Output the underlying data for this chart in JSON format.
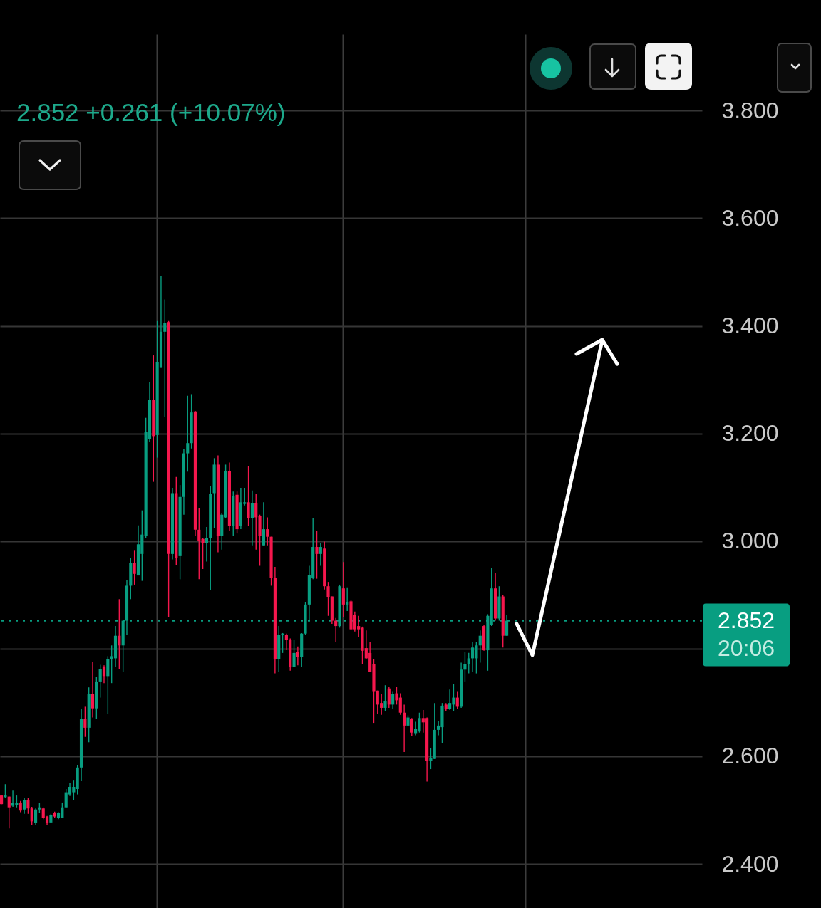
{
  "chart_data": {
    "type": "candlestick",
    "title": "2.852 +0.261 (+10.07%)",
    "categories": [
      null,
      null,
      null,
      null,
      null,
      null,
      null,
      null,
      null,
      null,
      null,
      null,
      null,
      null,
      null,
      null,
      null,
      null,
      null,
      null,
      null,
      null,
      null,
      null,
      null,
      null,
      null,
      null,
      null,
      null,
      null,
      null,
      null,
      null,
      null,
      null,
      null,
      null,
      null,
      null,
      null,
      null,
      null,
      null,
      null,
      null,
      null,
      null,
      null,
      null,
      null,
      null,
      null,
      null,
      null,
      null,
      null,
      null,
      null,
      null,
      null,
      null,
      null,
      null,
      null,
      null,
      null,
      null,
      null,
      null,
      null,
      null,
      null,
      null,
      null,
      null,
      null,
      null,
      null,
      null,
      null,
      null,
      null,
      null,
      null,
      null,
      null,
      null,
      null,
      null,
      null,
      null,
      null,
      null,
      null,
      null,
      null,
      null,
      null,
      null,
      null,
      null,
      null,
      null,
      null,
      null,
      null,
      null,
      null,
      null,
      null,
      null,
      null,
      null,
      null,
      null,
      null,
      null,
      null,
      null,
      null,
      null,
      null,
      null,
      null,
      null,
      null,
      null,
      null,
      null,
      null,
      null,
      null,
      null,
      null,
      null,
      null,
      null,
      null,
      null,
      null,
      null,
      null,
      null,
      null,
      null,
      null,
      null,
      null,
      null,
      null,
      null,
      null,
      null,
      null,
      null,
      null,
      null,
      null,
      null,
      null,
      null,
      null,
      null,
      null,
      null,
      null,
      null,
      null,
      null,
      null,
      null,
      null,
      null,
      null,
      null,
      null,
      null,
      null,
      null,
      null,
      null,
      null,
      null,
      null
    ],
    "ohlc": [
      [
        2.527,
        2.527,
        2.511,
        2.511
      ],
      [
        2.524,
        2.548,
        2.523,
        2.528
      ],
      [
        2.525,
        2.525,
        2.466,
        2.505
      ],
      [
        2.508,
        2.536,
        2.506,
        2.514
      ],
      [
        2.509,
        2.527,
        2.505,
        2.513
      ],
      [
        2.514,
        2.517,
        2.496,
        2.499
      ],
      [
        2.501,
        2.523,
        2.493,
        2.519
      ],
      [
        2.519,
        2.523,
        2.493,
        2.503
      ],
      [
        2.503,
        2.506,
        2.473,
        2.479
      ],
      [
        2.476,
        2.503,
        2.473,
        2.501
      ],
      [
        2.501,
        2.513,
        2.495,
        2.505
      ],
      [
        2.503,
        2.505,
        2.483,
        2.485
      ],
      [
        2.488,
        2.489,
        2.473,
        2.476
      ],
      [
        2.477,
        2.493,
        2.476,
        2.491
      ],
      [
        2.495,
        2.497,
        2.486,
        2.488
      ],
      [
        2.486,
        2.496,
        2.483,
        2.495
      ],
      [
        2.486,
        2.514,
        2.486,
        2.505
      ],
      [
        2.505,
        2.539,
        2.505,
        2.533
      ],
      [
        2.529,
        2.551,
        2.526,
        2.543
      ],
      [
        2.533,
        2.556,
        2.519,
        2.543
      ],
      [
        2.539,
        2.584,
        2.529,
        2.579
      ],
      [
        2.579,
        2.688,
        2.555,
        2.669
      ],
      [
        2.669,
        2.692,
        2.636,
        2.653
      ],
      [
        2.653,
        2.728,
        2.626,
        2.716
      ],
      [
        2.716,
        2.776,
        2.672,
        2.689
      ],
      [
        2.689,
        2.747,
        2.669,
        2.739
      ],
      [
        2.739,
        2.77,
        2.709,
        2.762
      ],
      [
        2.766,
        2.769,
        2.736,
        2.749
      ],
      [
        2.749,
        2.786,
        2.679,
        2.78
      ],
      [
        2.78,
        2.806,
        2.736,
        2.786
      ],
      [
        2.782,
        2.842,
        2.766,
        2.824
      ],
      [
        2.824,
        2.892,
        2.762,
        2.806
      ],
      [
        2.806,
        2.852,
        2.756,
        2.852
      ],
      [
        2.852,
        2.928,
        2.826,
        2.917
      ],
      [
        2.917,
        2.969,
        2.892,
        2.959
      ],
      [
        2.959,
        2.982,
        2.919,
        2.939
      ],
      [
        2.936,
        3.029,
        2.936,
        2.994
      ],
      [
        2.976,
        3.057,
        2.926,
        3.012
      ],
      [
        3.009,
        3.229,
        3.006,
        3.202
      ],
      [
        3.189,
        3.295,
        3.185,
        3.262
      ],
      [
        3.262,
        3.345,
        3.11,
        3.195
      ],
      [
        3.197,
        3.409,
        3.155,
        3.332
      ],
      [
        3.322,
        3.492,
        3.322,
        3.389
      ],
      [
        3.389,
        3.449,
        3.23,
        3.405
      ],
      [
        3.407,
        3.409,
        2.859,
        2.976
      ],
      [
        2.976,
        3.099,
        2.966,
        3.089
      ],
      [
        3.089,
        3.119,
        2.956,
        2.969
      ],
      [
        2.972,
        3.104,
        2.929,
        3.082
      ],
      [
        3.082,
        3.171,
        3.049,
        3.163
      ],
      [
        3.163,
        3.27,
        3.129,
        3.182
      ],
      [
        3.182,
        3.273,
        3.172,
        3.239
      ],
      [
        3.241,
        3.242,
        3.009,
        3.021
      ],
      [
        3.021,
        3.062,
        2.929,
        3.001
      ],
      [
        3.004,
        3.006,
        2.948,
        2.997
      ],
      [
        2.997,
        3.026,
        2.962,
        3.006
      ],
      [
        3.006,
        3.102,
        2.909,
        3.088
      ],
      [
        3.089,
        3.154,
        3.024,
        3.142
      ],
      [
        3.142,
        3.159,
        2.979,
        3.009
      ],
      [
        3.009,
        3.052,
        2.984,
        3.049
      ],
      [
        3.044,
        3.142,
        3.042,
        3.13
      ],
      [
        3.13,
        3.146,
        3.019,
        3.028
      ],
      [
        3.028,
        3.092,
        3.009,
        3.084
      ],
      [
        3.086,
        3.092,
        3.014,
        3.022
      ],
      [
        3.028,
        3.099,
        3.022,
        3.072
      ],
      [
        3.069,
        3.099,
        3.066,
        3.072
      ],
      [
        3.072,
        3.139,
        3.028,
        3.042
      ],
      [
        3.042,
        3.094,
        2.992,
        3.07
      ],
      [
        3.07,
        3.088,
        2.984,
        3.044
      ],
      [
        3.046,
        3.049,
        2.954,
        3.009
      ],
      [
        2.992,
        3.072,
        2.992,
        3.022
      ],
      [
        3.022,
        3.044,
        2.992,
        3.008
      ],
      [
        3.008,
        3.008,
        2.917,
        2.932
      ],
      [
        2.932,
        2.952,
        2.754,
        2.781
      ],
      [
        2.781,
        2.842,
        2.756,
        2.826
      ],
      [
        2.826,
        2.829,
        2.792,
        2.828
      ],
      [
        2.826,
        2.828,
        2.797,
        2.816
      ],
      [
        2.817,
        2.819,
        2.759,
        2.766
      ],
      [
        2.766,
        2.817,
        2.766,
        2.792
      ],
      [
        2.794,
        2.804,
        2.769,
        2.784
      ],
      [
        2.784,
        2.829,
        2.766,
        2.828
      ],
      [
        2.828,
        2.886,
        2.826,
        2.882
      ],
      [
        2.882,
        2.954,
        2.854,
        2.937
      ],
      [
        2.932,
        3.042,
        2.929,
        2.989
      ],
      [
        2.989,
        3.019,
        2.93,
        2.976
      ],
      [
        2.976,
        2.997,
        2.954,
        2.989
      ],
      [
        2.986,
        2.999,
        2.91,
        2.916
      ],
      [
        2.916,
        2.924,
        2.861,
        2.896
      ],
      [
        2.897,
        2.897,
        2.846,
        2.852
      ],
      [
        2.852,
        2.857,
        2.812,
        2.842
      ],
      [
        2.842,
        2.919,
        2.839,
        2.916
      ],
      [
        2.912,
        2.961,
        2.859,
        2.882
      ],
      [
        2.882,
        2.914,
        2.87,
        2.886
      ],
      [
        2.888,
        2.89,
        2.834,
        2.836
      ],
      [
        2.862,
        2.869,
        2.832,
        2.836
      ],
      [
        2.842,
        2.861,
        2.821,
        2.836
      ],
      [
        2.839,
        2.841,
        2.772,
        2.796
      ],
      [
        2.801,
        2.834,
        2.781,
        2.782
      ],
      [
        2.792,
        2.812,
        2.756,
        2.757
      ],
      [
        2.772,
        2.781,
        2.662,
        2.721
      ],
      [
        2.722,
        2.722,
        2.679,
        2.696
      ],
      [
        2.699,
        2.716,
        2.677,
        2.69
      ],
      [
        2.69,
        2.732,
        2.684,
        2.702
      ],
      [
        2.726,
        2.729,
        2.69,
        2.696
      ],
      [
        2.696,
        2.721,
        2.688,
        2.716
      ],
      [
        2.717,
        2.729,
        2.696,
        2.704
      ],
      [
        2.709,
        2.717,
        2.677,
        2.681
      ],
      [
        2.681,
        2.696,
        2.608,
        2.657
      ],
      [
        2.657,
        2.676,
        2.657,
        2.672
      ],
      [
        2.669,
        2.671,
        2.637,
        2.644
      ],
      [
        2.643,
        2.664,
        2.639,
        2.651
      ],
      [
        2.646,
        2.681,
        2.644,
        2.671
      ],
      [
        2.671,
        2.686,
        2.644,
        2.663
      ],
      [
        2.671,
        2.672,
        2.553,
        2.591
      ],
      [
        2.591,
        2.615,
        2.576,
        2.597
      ],
      [
        2.595,
        2.699,
        2.595,
        2.649
      ],
      [
        2.649,
        2.666,
        2.639,
        2.657
      ],
      [
        2.654,
        2.699,
        2.624,
        2.694
      ],
      [
        2.696,
        2.699,
        2.684,
        2.688
      ],
      [
        2.688,
        2.724,
        2.686,
        2.699
      ],
      [
        2.696,
        2.734,
        2.684,
        2.709
      ],
      [
        2.709,
        2.721,
        2.688,
        2.692
      ],
      [
        2.692,
        2.774,
        2.69,
        2.761
      ],
      [
        2.761,
        2.794,
        2.739,
        2.772
      ],
      [
        2.772,
        2.792,
        2.754,
        2.782
      ],
      [
        2.782,
        2.812,
        2.756,
        2.802
      ],
      [
        2.782,
        2.812,
        2.754,
        2.806
      ],
      [
        2.806,
        2.834,
        2.774,
        2.824
      ],
      [
        2.842,
        2.844,
        2.796,
        2.797
      ],
      [
        2.797,
        2.864,
        2.759,
        2.861
      ],
      [
        2.844,
        2.95,
        2.842,
        2.912
      ],
      [
        2.912,
        2.941,
        2.852,
        2.856
      ],
      [
        2.856,
        2.916,
        2.852,
        2.897
      ],
      [
        2.897,
        2.899,
        2.802,
        2.824
      ],
      [
        2.824,
        2.862,
        2.824,
        2.852
      ],
      null,
      null,
      null,
      null,
      null,
      null,
      null,
      null,
      null,
      null,
      null,
      null,
      null,
      null,
      null,
      null,
      null,
      null,
      null,
      null,
      null,
      null,
      null,
      null,
      null,
      null,
      null,
      null,
      null,
      null,
      null,
      null,
      null,
      null,
      null,
      null,
      null,
      null,
      null,
      null,
      null,
      null,
      null,
      null,
      null,
      null,
      null,
      null,
      null,
      null,
      null
    ],
    "colors": [
      "#f5174d",
      "#089e81",
      "#f5174d",
      "#089e81",
      "#089e81",
      "#f5174d",
      "#089e81",
      "#f5174d",
      "#f5174d",
      "#089e81",
      "#089e81",
      "#f5174d",
      "#f5174d",
      "#089e81",
      "#f5174d",
      "#089e81",
      "#089e81",
      "#089e81",
      "#089e81",
      "#089e81",
      "#089e81",
      "#089e81",
      "#f5174d",
      "#089e81",
      "#f5174d",
      "#089e81",
      "#089e81",
      "#f5174d",
      "#089e81",
      "#089e81",
      "#089e81",
      "#f5174d",
      "#089e81",
      "#089e81",
      "#089e81",
      "#f5174d",
      "#089e81",
      "#089e81",
      "#089e81",
      "#089e81",
      "#f5174d",
      "#089e81",
      "#089e81",
      "#089e81",
      "#f5174d",
      "#089e81",
      "#f5174d",
      "#089e81",
      "#089e81",
      "#089e81",
      "#089e81",
      "#f5174d",
      "#f5174d",
      "#f5174d",
      "#089e81",
      "#089e81",
      "#089e81",
      "#f5174d",
      "#089e81",
      "#089e81",
      "#f5174d",
      "#089e81",
      "#f5174d",
      "#089e81",
      "#089e81",
      "#f5174d",
      "#089e81",
      "#f5174d",
      "#f5174d",
      "#089e81",
      "#f5174d",
      "#f5174d",
      "#f5174d",
      "#089e81",
      "#089e81",
      "#f5174d",
      "#f5174d",
      "#089e81",
      "#f5174d",
      "#089e81",
      "#089e81",
      "#089e81",
      "#089e81",
      "#f5174d",
      "#089e81",
      "#f5174d",
      "#f5174d",
      "#f5174d",
      "#f5174d",
      "#089e81",
      "#f5174d",
      "#089e81",
      "#f5174d",
      "#f5174d",
      "#f5174d",
      "#f5174d",
      "#f5174d",
      "#f5174d",
      "#f5174d",
      "#f5174d",
      "#f5174d",
      "#089e81",
      "#f5174d",
      "#089e81",
      "#f5174d",
      "#f5174d",
      "#f5174d",
      "#089e81",
      "#f5174d",
      "#089e81",
      "#089e81",
      "#f5174d",
      "#f5174d",
      "#089e81",
      "#089e81",
      "#089e81",
      "#089e81",
      "#f5174d",
      "#089e81",
      "#089e81",
      "#f5174d",
      "#089e81",
      "#089e81",
      "#089e81",
      "#089e81",
      "#089e81",
      "#089e81",
      "#f5174d",
      "#089e81",
      "#089e81",
      "#f5174d",
      "#089e81",
      "#f5174d",
      "#089e81",
      null,
      null,
      null,
      null,
      null,
      null,
      null,
      null,
      null,
      null,
      null,
      null,
      null,
      null,
      null,
      null,
      null,
      null,
      null,
      null,
      null,
      null,
      null,
      null,
      null,
      null,
      null,
      null,
      null,
      null,
      null,
      null,
      null,
      null,
      null,
      null,
      null,
      null,
      null,
      null,
      null,
      null,
      null,
      null,
      null,
      null,
      null,
      null,
      null,
      null,
      null
    ],
    "ylim": [
      2.318,
      3.942
    ],
    "yticks": [
      {
        "value": 2.4,
        "label": "2.400"
      },
      {
        "value": 2.6,
        "label": "2.600"
      },
      {
        "value": 2.8,
        "label": null
      },
      {
        "value": 3.0,
        "label": "3.000"
      },
      {
        "value": 3.2,
        "label": "3.200"
      },
      {
        "value": 3.4,
        "label": "3.400"
      },
      {
        "value": 3.6,
        "label": "3.600"
      },
      {
        "value": 3.8,
        "label": "3.800"
      }
    ],
    "grid": true,
    "tick_labels": "y",
    "ref_lines": [
      {
        "axis": "y",
        "value": 2.852,
        "label": "2.852",
        "color": "#089e81",
        "line_style": "dotted"
      }
    ],
    "annotations": [
      "20:06"
    ]
  }
}
